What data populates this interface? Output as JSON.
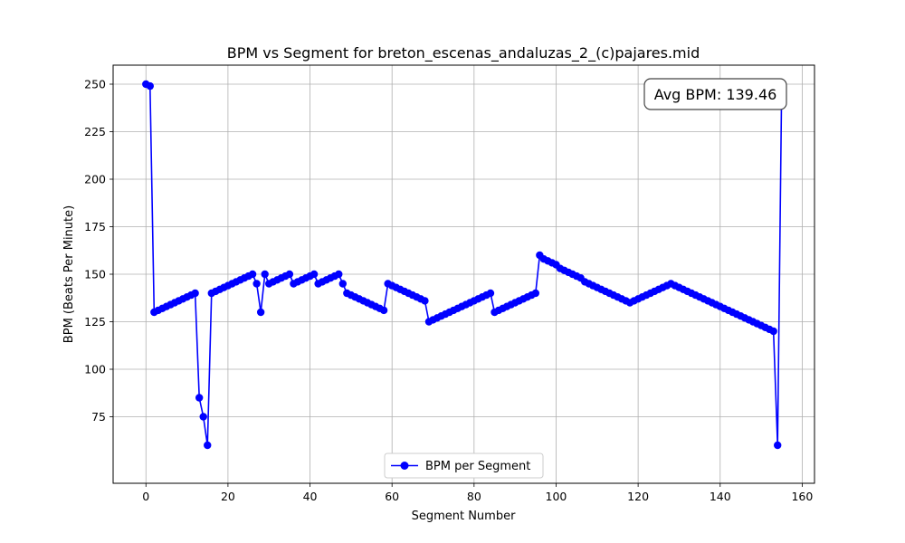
{
  "chart_data": {
    "type": "line",
    "title": "BPM vs Segment for breton_escenas_andaluzas_2_(c)pajares.mid",
    "xlabel": "Segment Number",
    "ylabel": "BPM (Beats Per Minute)",
    "xlim": [
      -8,
      163
    ],
    "ylim": [
      40,
      260
    ],
    "xticks": [
      0,
      20,
      40,
      60,
      80,
      100,
      120,
      140,
      160
    ],
    "yticks": [
      75,
      100,
      125,
      150,
      175,
      200,
      225,
      250
    ],
    "grid": true,
    "legend_position": "bottom-center",
    "annotation": "Avg BPM: 139.46",
    "colors": {
      "series": "#0000ff",
      "grid": "#b0b0b0"
    },
    "series": [
      {
        "name": "BPM per Segment",
        "x": [
          0,
          1,
          2,
          3,
          4,
          5,
          6,
          7,
          8,
          9,
          10,
          11,
          12,
          13,
          14,
          15,
          16,
          17,
          18,
          19,
          20,
          21,
          22,
          23,
          24,
          25,
          26,
          27,
          28,
          29,
          30,
          31,
          32,
          33,
          34,
          35,
          36,
          37,
          38,
          39,
          40,
          41,
          42,
          43,
          44,
          45,
          46,
          47,
          48,
          49,
          50,
          51,
          52,
          53,
          54,
          55,
          56,
          57,
          58,
          59,
          60,
          61,
          62,
          63,
          64,
          65,
          66,
          67,
          68,
          69,
          70,
          71,
          72,
          73,
          74,
          75,
          76,
          77,
          78,
          79,
          80,
          81,
          82,
          83,
          84,
          85,
          86,
          87,
          88,
          89,
          90,
          91,
          92,
          93,
          94,
          95,
          96,
          97,
          98,
          99,
          100,
          101,
          102,
          103,
          104,
          105,
          106,
          107,
          108,
          109,
          110,
          111,
          112,
          113,
          114,
          115,
          116,
          117,
          118,
          119,
          120,
          121,
          122,
          123,
          124,
          125,
          126,
          127,
          128,
          129,
          130,
          131,
          132,
          133,
          134,
          135,
          136,
          137,
          138,
          139,
          140,
          141,
          142,
          143,
          144,
          145,
          146,
          147,
          148,
          149,
          150,
          151,
          152,
          153,
          154,
          155
        ],
        "y": [
          250,
          249,
          130,
          131,
          132,
          133,
          134,
          135,
          136,
          137,
          138,
          139,
          140,
          85,
          75,
          60,
          140,
          141,
          142,
          143,
          144,
          145,
          146,
          147,
          148,
          149,
          150,
          145,
          130,
          150,
          145,
          146,
          147,
          148,
          149,
          150,
          145,
          146,
          147,
          148,
          149,
          150,
          145,
          146,
          147,
          148,
          149,
          150,
          145,
          140,
          139,
          138,
          137,
          136,
          135,
          134,
          133,
          132,
          131,
          145,
          144,
          143,
          142,
          141,
          140,
          139,
          138,
          137,
          136,
          125,
          126,
          127,
          128,
          129,
          130,
          131,
          132,
          133,
          134,
          135,
          136,
          137,
          138,
          139,
          140,
          130,
          131,
          132,
          133,
          134,
          135,
          136,
          137,
          138,
          139,
          140,
          160,
          158,
          157,
          156,
          155,
          153,
          152,
          151,
          150,
          149,
          148,
          146,
          145,
          144,
          143,
          142,
          141,
          140,
          139,
          138,
          137,
          136,
          135,
          136,
          137,
          138,
          139,
          140,
          141,
          142,
          143,
          144,
          145,
          144,
          143,
          142,
          141,
          140,
          139,
          138,
          137,
          136,
          135,
          134,
          133,
          132,
          131,
          130,
          129,
          128,
          127,
          126,
          125,
          124,
          123,
          122,
          121,
          120,
          60,
          250
        ]
      }
    ]
  }
}
